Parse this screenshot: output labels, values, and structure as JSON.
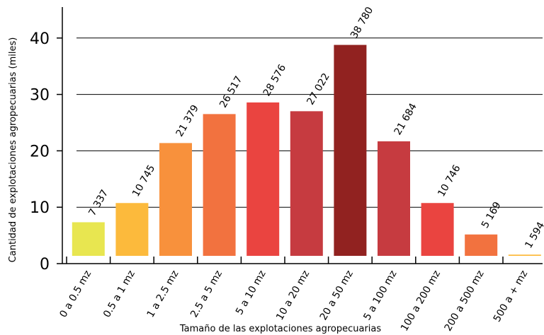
{
  "chart_data": {
    "type": "bar",
    "categories": [
      "0 a 0.5 mz",
      "0.5 a 1 mz",
      "1 a 2.5 mz",
      "2.5 a 5 mz",
      "5 a 10 mz",
      "10 a 20 mz",
      "20 a 50 mz",
      "5 a 100 mz",
      "100 a 200 mz",
      "200 a 500 mz",
      "500 a + mz"
    ],
    "values": [
      7337,
      10745,
      21379,
      26517,
      28576,
      27022,
      38780,
      21684,
      10746,
      5169,
      1594
    ],
    "data_labels": [
      "7 337",
      "10 745",
      "21 379",
      "26 517",
      "28 576",
      "27 022",
      "38 780",
      "21 684",
      "10 746",
      "5 169",
      "1 594"
    ],
    "colors": [
      "#e8e650",
      "#fcba3c",
      "#f8913c",
      "#f2723f",
      "#ea4440",
      "#c63b40",
      "#912220",
      "#c63b40",
      "#ea4440",
      "#f2723f",
      "#fcba3c"
    ],
    "title": "",
    "xlabel": "Tamaño de las explotaciones agropecuarias",
    "ylabel": "Cantidad de explotaciones agropecuarias (miles)",
    "yticks": [
      "0",
      "10",
      "20",
      "30",
      "40"
    ],
    "ylim": [
      0,
      40
    ],
    "grid": true,
    "legend": "none"
  }
}
